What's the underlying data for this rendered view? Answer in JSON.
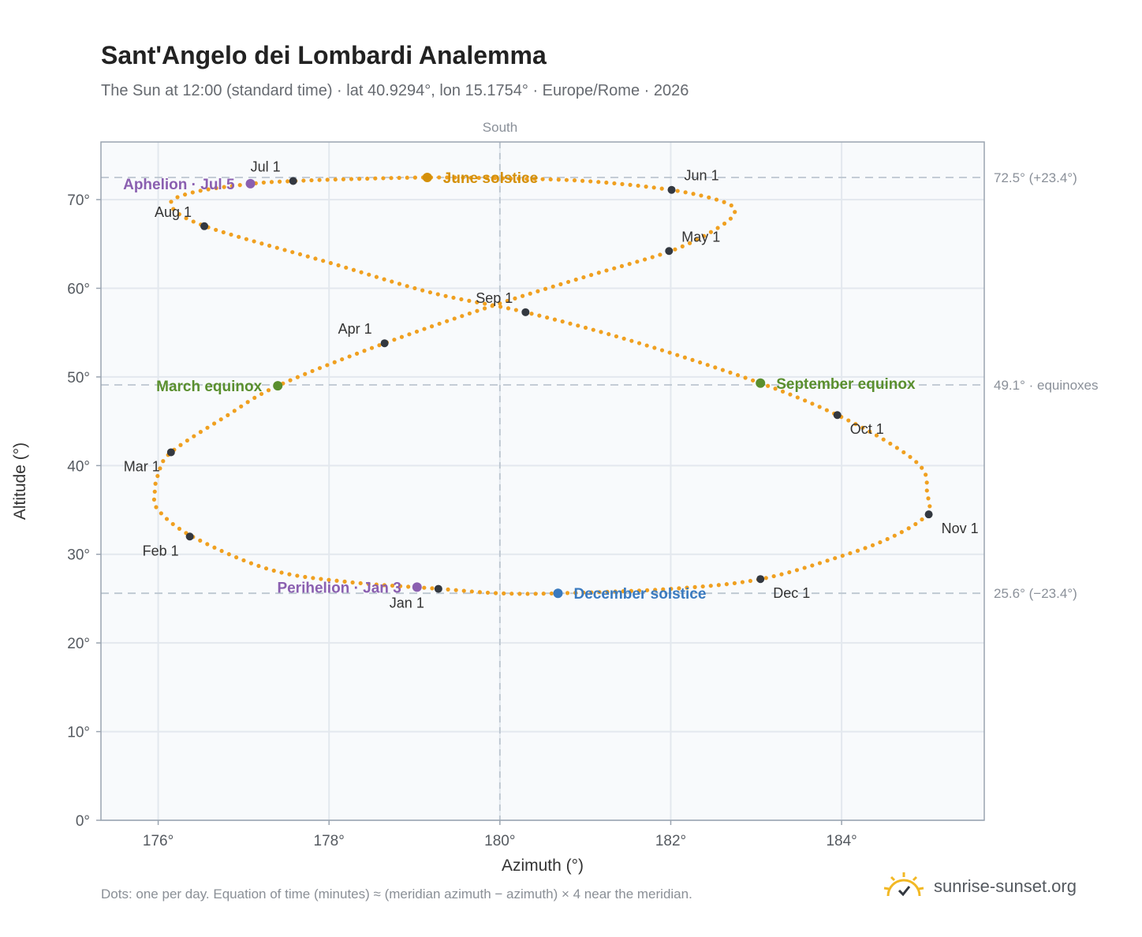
{
  "header": {
    "title": "Sant'Angelo dei Lombardi Analemma",
    "subtitle": "The Sun at 12:00 (standard time) · lat 40.9294°, lon 15.1754° · Europe/Rome · 2026"
  },
  "footer": {
    "note": "Dots: one per day. Equation of time (minutes) ≈ (meridian azimuth − azimuth) × 4 near the meridian.",
    "brand": "sunrise-sunset.org"
  },
  "colors": {
    "path": "#f0a020",
    "month_marker": "#333840",
    "solstice_june": "#d4900a",
    "solstice_december": "#3a7abf",
    "equinox": "#5a8f2e",
    "apsis": "#8a5fb0",
    "plot_bg": "#f8fafc",
    "grid": "#e3e8ee",
    "reference_line": "#bcc6d0",
    "frame": "#9aa4b0"
  },
  "chart_data": {
    "type": "scatter",
    "title": "Sant'Angelo dei Lombardi Analemma",
    "xlabel": "Azimuth (°)",
    "ylabel": "Altitude (°)",
    "xlim": [
      175.33,
      185.67
    ],
    "ylim": [
      0,
      76.5
    ],
    "x_ticks": [
      176,
      178,
      180,
      182,
      184
    ],
    "x_tick_labels": [
      "176°",
      "178°",
      "180°",
      "182°",
      "184°"
    ],
    "y_ticks": [
      0,
      10,
      20,
      30,
      40,
      50,
      60,
      70
    ],
    "y_tick_labels": [
      "0°",
      "10°",
      "20°",
      "30°",
      "40°",
      "50°",
      "60°",
      "70°"
    ],
    "grid": true,
    "meridian": {
      "azimuth": 180,
      "label": "South"
    },
    "reference_lines": [
      {
        "altitude": 72.5,
        "label": "72.5° (+23.4°)"
      },
      {
        "altitude": 49.1,
        "label": "49.1° · equinoxes"
      },
      {
        "altitude": 25.6,
        "label": "25.6° (−23.4°)"
      }
    ],
    "daily_path": [
      [
        179.3,
        26.1
      ],
      [
        178.2,
        26.9
      ],
      [
        177.3,
        28.3
      ],
      [
        176.4,
        32.0
      ],
      [
        176.0,
        35.0
      ],
      [
        175.96,
        37.0
      ],
      [
        176.0,
        39.0
      ],
      [
        176.15,
        41.5
      ],
      [
        176.8,
        45.6
      ],
      [
        177.4,
        49.0
      ],
      [
        178.65,
        53.8
      ],
      [
        180.0,
        58.3
      ],
      [
        181.0,
        61.3
      ],
      [
        182.0,
        64.2
      ],
      [
        182.55,
        66.8
      ],
      [
        182.75,
        68.6
      ],
      [
        182.6,
        69.8
      ],
      [
        182.0,
        71.1
      ],
      [
        181.0,
        72.1
      ],
      [
        180.0,
        72.4
      ],
      [
        179.15,
        72.5
      ],
      [
        178.2,
        72.3
      ],
      [
        177.6,
        72.1
      ],
      [
        177.1,
        71.8
      ],
      [
        176.4,
        70.8
      ],
      [
        176.15,
        69.4
      ],
      [
        176.55,
        67.0
      ],
      [
        178.0,
        62.9
      ],
      [
        179.2,
        59.5
      ],
      [
        180.3,
        57.3
      ],
      [
        181.6,
        53.9
      ],
      [
        183.05,
        49.3
      ],
      [
        183.95,
        45.7
      ],
      [
        184.6,
        42.3
      ],
      [
        184.95,
        39.6
      ],
      [
        185.0,
        37.0
      ],
      [
        185.0,
        34.5
      ],
      [
        184.6,
        32.0
      ],
      [
        184.0,
        29.8
      ],
      [
        183.05,
        27.2
      ],
      [
        182.0,
        26.1
      ],
      [
        180.68,
        25.6
      ],
      [
        180.0,
        25.6
      ],
      [
        179.3,
        26.1
      ]
    ],
    "month_markers": [
      {
        "label": "Jan 1",
        "az": 179.28,
        "alt": 26.1,
        "anchor": "below"
      },
      {
        "label": "Feb 1",
        "az": 176.37,
        "alt": 32.0,
        "anchor": "below-left"
      },
      {
        "label": "Mar 1",
        "az": 176.15,
        "alt": 41.5,
        "anchor": "below-left"
      },
      {
        "label": "Apr 1",
        "az": 178.65,
        "alt": 53.8,
        "anchor": "above-left"
      },
      {
        "label": "May 1",
        "az": 181.98,
        "alt": 64.2,
        "anchor": "above-right"
      },
      {
        "label": "Jun 1",
        "az": 182.01,
        "alt": 71.1,
        "anchor": "above-right"
      },
      {
        "label": "Jul 1",
        "az": 177.58,
        "alt": 72.1,
        "anchor": "above-left"
      },
      {
        "label": "Aug 1",
        "az": 176.54,
        "alt": 67.0,
        "anchor": "above-left"
      },
      {
        "label": "Sep 1",
        "az": 180.3,
        "alt": 57.3,
        "anchor": "above-left"
      },
      {
        "label": "Oct 1",
        "az": 183.95,
        "alt": 45.7,
        "anchor": "below-right"
      },
      {
        "label": "Nov 1",
        "az": 185.02,
        "alt": 34.5,
        "anchor": "below-right"
      },
      {
        "label": "Dec 1",
        "az": 183.05,
        "alt": 27.2,
        "anchor": "below-right"
      }
    ],
    "events": [
      {
        "label": "June solstice",
        "az": 179.15,
        "alt": 72.5,
        "color": "solstice_june",
        "side": "right"
      },
      {
        "label": "December solstice",
        "az": 180.68,
        "alt": 25.6,
        "color": "solstice_december",
        "side": "right"
      },
      {
        "label": "March equinox",
        "az": 177.4,
        "alt": 49.0,
        "color": "equinox",
        "side": "left"
      },
      {
        "label": "September equinox",
        "az": 183.05,
        "alt": 49.3,
        "color": "equinox",
        "side": "right"
      },
      {
        "label": "Aphelion · Jul 5",
        "az": 177.08,
        "alt": 71.8,
        "color": "apsis",
        "side": "left"
      },
      {
        "label": "Perihelion · Jan 3",
        "az": 179.03,
        "alt": 26.3,
        "color": "apsis",
        "side": "left"
      }
    ]
  }
}
